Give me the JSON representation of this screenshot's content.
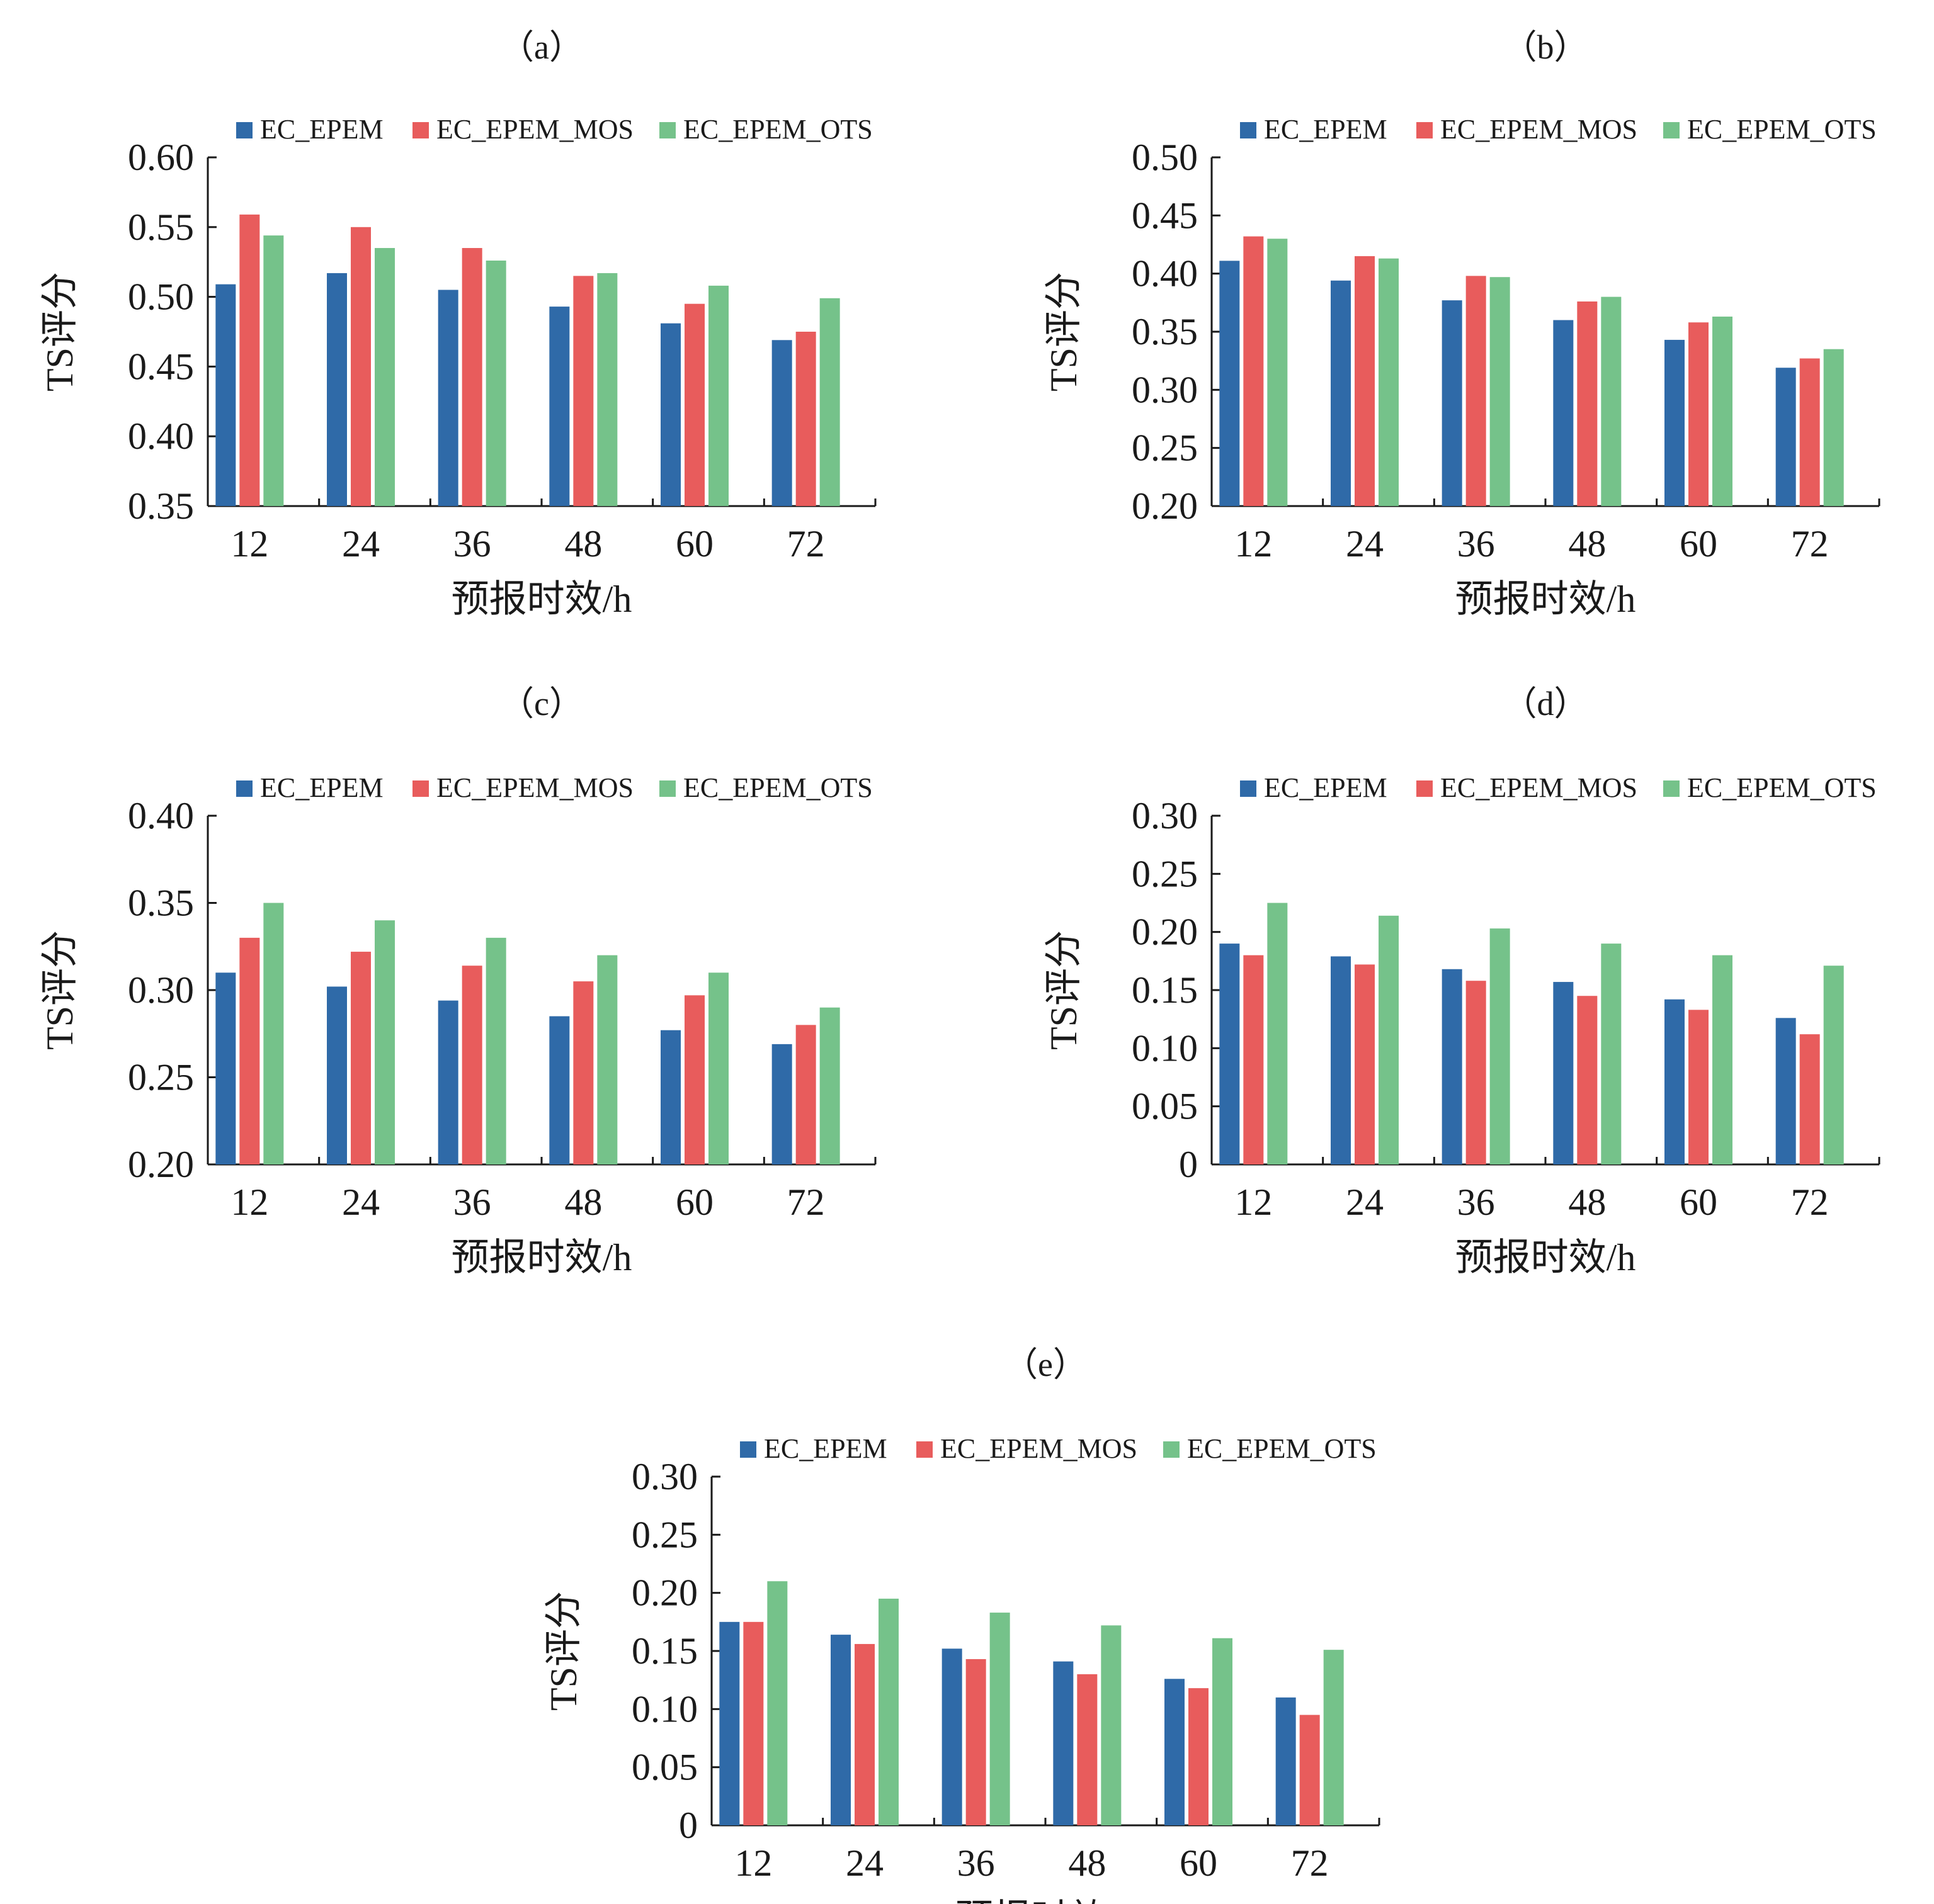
{
  "colors": {
    "EC_EPEM": "#2f6aa8",
    "EC_EPEM_MOS": "#e85c5c",
    "EC_EPEM_OTS": "#75c28a",
    "axis": "#1a1a1a"
  },
  "chart_data": [
    {
      "panel": "（a）",
      "type": "bar",
      "categories": [
        "12",
        "24",
        "36",
        "48",
        "60",
        "72"
      ],
      "xlabel": "预报时效/h",
      "ylabel": "TS评分",
      "ylim": [
        0.35,
        0.6
      ],
      "yticks": [
        "0.60",
        "0.55",
        "0.50",
        "0.45",
        "0.40",
        "0.35"
      ],
      "legend": "top",
      "series": [
        {
          "name": "EC_EPEM",
          "values": [
            0.509,
            0.517,
            0.505,
            0.493,
            0.481,
            0.469
          ]
        },
        {
          "name": "EC_EPEM_MOS",
          "values": [
            0.559,
            0.55,
            0.535,
            0.515,
            0.495,
            0.475
          ]
        },
        {
          "name": "EC_EPEM_OTS",
          "values": [
            0.544,
            0.535,
            0.526,
            0.517,
            0.508,
            0.499
          ]
        }
      ]
    },
    {
      "panel": "（b）",
      "type": "bar",
      "categories": [
        "12",
        "24",
        "36",
        "48",
        "60",
        "72"
      ],
      "xlabel": "预报时效/h",
      "ylabel": "TS评分",
      "ylim": [
        0.2,
        0.5
      ],
      "yticks": [
        "0.50",
        "0.45",
        "0.40",
        "0.35",
        "0.30",
        "0.25",
        "0.20"
      ],
      "legend": "top",
      "series": [
        {
          "name": "EC_EPEM",
          "values": [
            0.411,
            0.394,
            0.377,
            0.36,
            0.343,
            0.319
          ]
        },
        {
          "name": "EC_EPEM_MOS",
          "values": [
            0.432,
            0.415,
            0.398,
            0.376,
            0.358,
            0.327
          ]
        },
        {
          "name": "EC_EPEM_OTS",
          "values": [
            0.43,
            0.413,
            0.397,
            0.38,
            0.363,
            0.335
          ]
        }
      ]
    },
    {
      "panel": "（c）",
      "type": "bar",
      "categories": [
        "12",
        "24",
        "36",
        "48",
        "60",
        "72"
      ],
      "xlabel": "预报时效/h",
      "ylabel": "TS评分",
      "ylim": [
        0.2,
        0.4
      ],
      "yticks": [
        "0.40",
        "0.35",
        "0.30",
        "0.25",
        "0.20"
      ],
      "legend": "top",
      "series": [
        {
          "name": "EC_EPEM",
          "values": [
            0.31,
            0.302,
            0.294,
            0.285,
            0.277,
            0.269
          ]
        },
        {
          "name": "EC_EPEM_MOS",
          "values": [
            0.33,
            0.322,
            0.314,
            0.305,
            0.297,
            0.28
          ]
        },
        {
          "name": "EC_EPEM_OTS",
          "values": [
            0.35,
            0.34,
            0.33,
            0.32,
            0.31,
            0.29
          ]
        }
      ]
    },
    {
      "panel": "（d）",
      "type": "bar",
      "categories": [
        "12",
        "24",
        "36",
        "48",
        "60",
        "72"
      ],
      "xlabel": "预报时效/h",
      "ylabel": "TS评分",
      "ylim": [
        0,
        0.3
      ],
      "yticks": [
        "0.30",
        "0.25",
        "0.20",
        "0.15",
        "0.10",
        "0.05",
        "0"
      ],
      "legend": "top",
      "series": [
        {
          "name": "EC_EPEM",
          "values": [
            0.19,
            0.179,
            0.168,
            0.157,
            0.142,
            0.126
          ]
        },
        {
          "name": "EC_EPEM_MOS",
          "values": [
            0.18,
            0.172,
            0.158,
            0.145,
            0.133,
            0.112
          ]
        },
        {
          "name": "EC_EPEM_OTS",
          "values": [
            0.225,
            0.214,
            0.203,
            0.19,
            0.18,
            0.171
          ]
        }
      ]
    },
    {
      "panel": "（e）",
      "type": "bar",
      "categories": [
        "12",
        "24",
        "36",
        "48",
        "60",
        "72"
      ],
      "xlabel": "预报时效/h",
      "ylabel": "TS评分",
      "ylim": [
        0,
        0.3
      ],
      "yticks": [
        "0.30",
        "0.25",
        "0.20",
        "0.15",
        "0.10",
        "0.05",
        "0"
      ],
      "legend": "top",
      "series": [
        {
          "name": "EC_EPEM",
          "values": [
            0.175,
            0.164,
            0.152,
            0.141,
            0.126,
            0.11
          ]
        },
        {
          "name": "EC_EPEM_MOS",
          "values": [
            0.175,
            0.156,
            0.143,
            0.13,
            0.118,
            0.095
          ]
        },
        {
          "name": "EC_EPEM_OTS",
          "values": [
            0.21,
            0.195,
            0.183,
            0.172,
            0.161,
            0.151
          ]
        }
      ]
    }
  ]
}
